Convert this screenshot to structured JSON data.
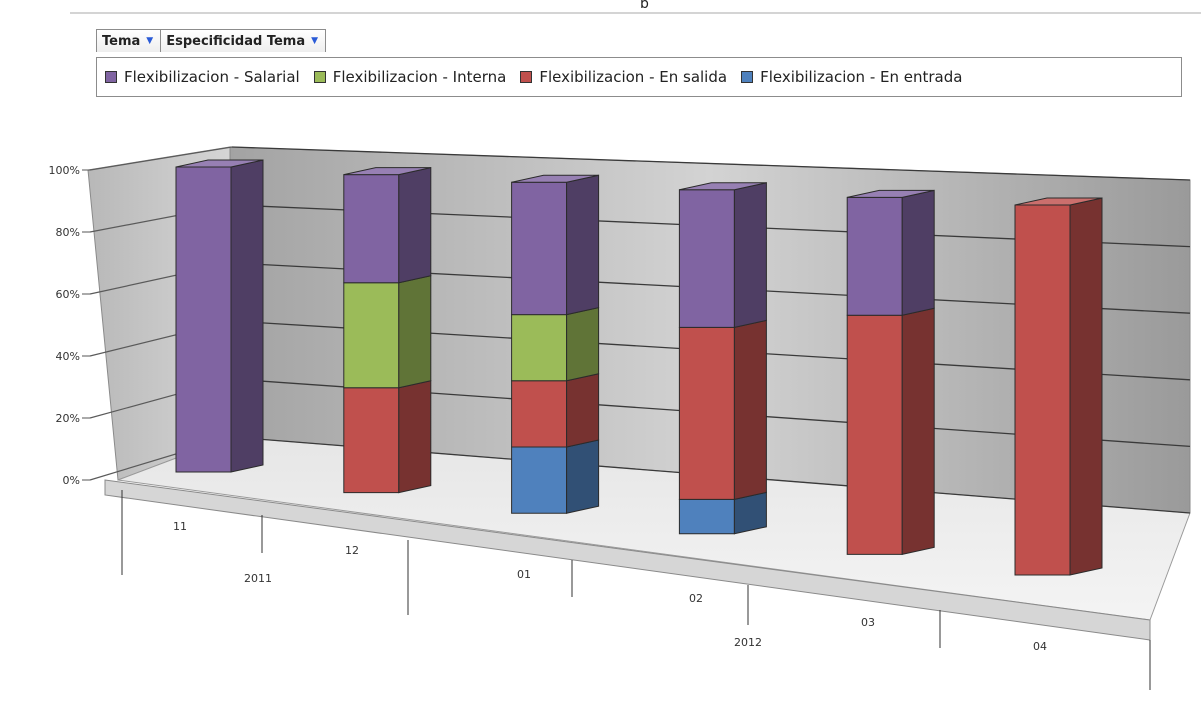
{
  "header": {
    "cut_title": "p"
  },
  "filters": [
    {
      "label": "Tema"
    },
    {
      "label": "Especificidad Tema"
    }
  ],
  "colors": {
    "Flexibilizacion - Salarial": "#8064a2",
    "Flexibilizacion - Interna": "#9bbb59",
    "Flexibilizacion - En salida": "#c0504d",
    "Flexibilizacion - En entrada": "#4f81bd"
  },
  "chart_data": {
    "type": "bar",
    "stacked": true,
    "three_d": true,
    "categories": [
      "11",
      "12",
      "01",
      "02",
      "03",
      "04"
    ],
    "groups": [
      {
        "label": "2011",
        "categories": [
          "11",
          "12"
        ]
      },
      {
        "label": "2012",
        "categories": [
          "01",
          "02",
          "03",
          "04"
        ]
      }
    ],
    "series": [
      {
        "name": "Flexibilizacion - En entrada",
        "values": [
          0,
          0,
          20,
          10,
          0,
          0
        ]
      },
      {
        "name": "Flexibilizacion - En salida",
        "values": [
          0,
          33,
          20,
          50,
          67,
          100
        ]
      },
      {
        "name": "Flexibilizacion - Interna",
        "values": [
          0,
          33,
          20,
          0,
          0,
          0
        ]
      },
      {
        "name": "Flexibilizacion - Salarial",
        "values": [
          100,
          34,
          40,
          40,
          33,
          0
        ]
      }
    ],
    "legend_order": [
      "Flexibilizacion - Salarial",
      "Flexibilizacion - Interna",
      "Flexibilizacion - En salida",
      "Flexibilizacion - En entrada"
    ],
    "yticks": [
      "0%",
      "20%",
      "40%",
      "60%",
      "80%",
      "100%"
    ],
    "ylim": [
      0,
      100
    ],
    "grid": true,
    "legend_position": "top"
  }
}
